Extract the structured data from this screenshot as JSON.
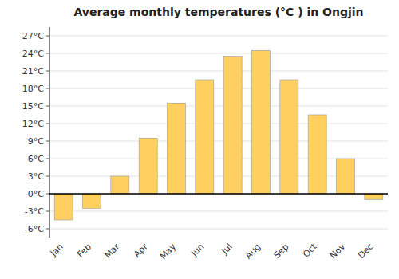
{
  "chart_data": {
    "type": "bar",
    "title": "Average monthly temperatures (°C ) in Ongjin",
    "categories": [
      "Jan",
      "Feb",
      "Mar",
      "Apr",
      "May",
      "Jun",
      "Jul",
      "Aug",
      "Sep",
      "Oct",
      "Nov",
      "Dec"
    ],
    "values": [
      -4.5,
      -2.5,
      3.0,
      9.5,
      15.5,
      19.5,
      23.5,
      24.5,
      19.5,
      13.5,
      6.0,
      -1.0
    ],
    "color": "#FFD060",
    "ylim": [
      -7.5,
      28.5
    ],
    "yticks": [
      {
        "value": -6,
        "label": "-6°C"
      },
      {
        "value": -3,
        "label": "-3°C"
      },
      {
        "value": 0,
        "label": "0°C"
      },
      {
        "value": 3,
        "label": "3°C"
      },
      {
        "value": 6,
        "label": "6°C"
      },
      {
        "value": 9,
        "label": "9°C"
      },
      {
        "value": 12,
        "label": "12°C"
      },
      {
        "value": 15,
        "label": "15°C"
      },
      {
        "value": 18,
        "label": "18°C"
      },
      {
        "value": 21,
        "label": "21°C"
      },
      {
        "value": 24,
        "label": "24°C"
      },
      {
        "value": 27,
        "label": "27°C"
      }
    ],
    "grid": true
  }
}
